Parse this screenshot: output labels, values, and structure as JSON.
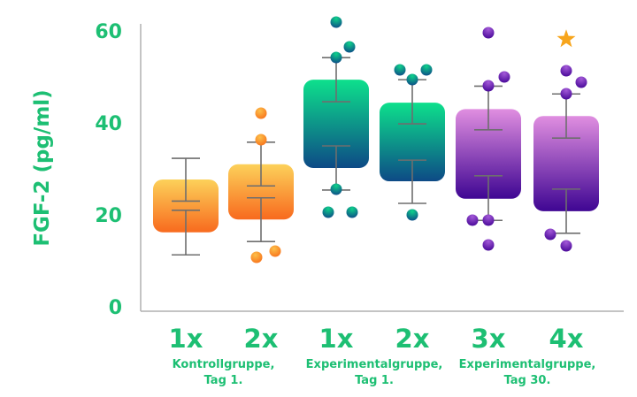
{
  "chart_data": {
    "type": "box",
    "title": "",
    "xlabel": "",
    "ylabel": "FGF-2 (pg/ml)",
    "ylim": [
      0,
      60
    ],
    "yticks": [
      0,
      20,
      40,
      60
    ],
    "grid": false,
    "categories": [
      "1x",
      "2x",
      "1x",
      "2x",
      "3x",
      "4x"
    ],
    "groups": [
      {
        "label_line1": "Kontrollgruppe,",
        "label_line2": "Tag 1.",
        "categories": [
          0,
          1
        ]
      },
      {
        "label_line1": "Experimentalgruppe,",
        "label_line2": "Tag 1.",
        "categories": [
          2,
          3
        ]
      },
      {
        "label_line1": "Experimentalgruppe,",
        "label_line2": "Tag 30.",
        "categories": [
          4,
          5
        ]
      }
    ],
    "boxes": [
      {
        "category": "1x",
        "group": "Kontrollgruppe, Tag 1.",
        "box_low": 16.2,
        "box_high": 27.7,
        "whisker_low": 11.3,
        "whisker_high": 32.3,
        "inner_low": 21.0,
        "inner_high": 23.0,
        "points": [],
        "color_top": "#fcd15a",
        "color_bottom": "#f86a1e"
      },
      {
        "category": "2x",
        "group": "Kontrollgruppe, Tag 1.",
        "box_low": 19.0,
        "box_high": 31.0,
        "whisker_low": 14.2,
        "whisker_high": 35.8,
        "inner_low": 23.7,
        "inner_high": 26.3,
        "points": [
          42.0,
          36.3,
          12.0,
          10.8
        ],
        "color_top": "#fcd15a",
        "color_bottom": "#f86a1e"
      },
      {
        "category": "1x",
        "group": "Experimentalgruppe, Tag 1.",
        "box_low": 30.2,
        "box_high": 49.4,
        "whisker_low": 25.4,
        "whisker_high": 54.2,
        "inner_low": 35.0,
        "inner_high": 44.6,
        "points": [
          62.0,
          56.5,
          54.2,
          25.6,
          20.6,
          20.6
        ],
        "color_top": "#0de08c",
        "color_bottom": "#0d4a86"
      },
      {
        "category": "2x",
        "group": "Experimentalgruppe, Tag 1.",
        "box_low": 27.3,
        "box_high": 44.4,
        "whisker_low": 22.5,
        "whisker_high": 49.4,
        "inner_low": 31.9,
        "inner_high": 39.8,
        "points": [
          51.5,
          51.5,
          49.4,
          20.0
        ],
        "color_top": "#0de08c",
        "color_bottom": "#0d4a86"
      },
      {
        "category": "3x",
        "group": "Experimentalgruppe, Tag 30.",
        "box_low": 23.5,
        "box_high": 43.0,
        "whisker_low": 18.8,
        "whisker_high": 48.0,
        "inner_low": 28.5,
        "inner_high": 38.5,
        "points": [
          59.6,
          50.0,
          48.0,
          18.8,
          18.8,
          13.5
        ],
        "color_top": "#e08ee0",
        "color_bottom": "#3f0693"
      },
      {
        "category": "4x",
        "group": "Experimentalgruppe, Tag 30.",
        "box_low": 20.8,
        "box_high": 41.5,
        "whisker_low": 16.0,
        "whisker_high": 46.3,
        "inner_low": 25.6,
        "inner_high": 36.7,
        "points": [
          51.3,
          48.8,
          46.3,
          15.8,
          13.3
        ],
        "color_top": "#e08ee0",
        "color_bottom": "#3f0693",
        "annotation": "star"
      }
    ],
    "annotations": [
      {
        "category_index": 5,
        "type": "star",
        "value": 58.6,
        "color": "#f7a51c"
      }
    ]
  },
  "colors": {
    "text_green": "#1dbf73",
    "axis": "#b0b0b0",
    "whisker": "#6e6e6e",
    "star": "#f7a51c"
  }
}
